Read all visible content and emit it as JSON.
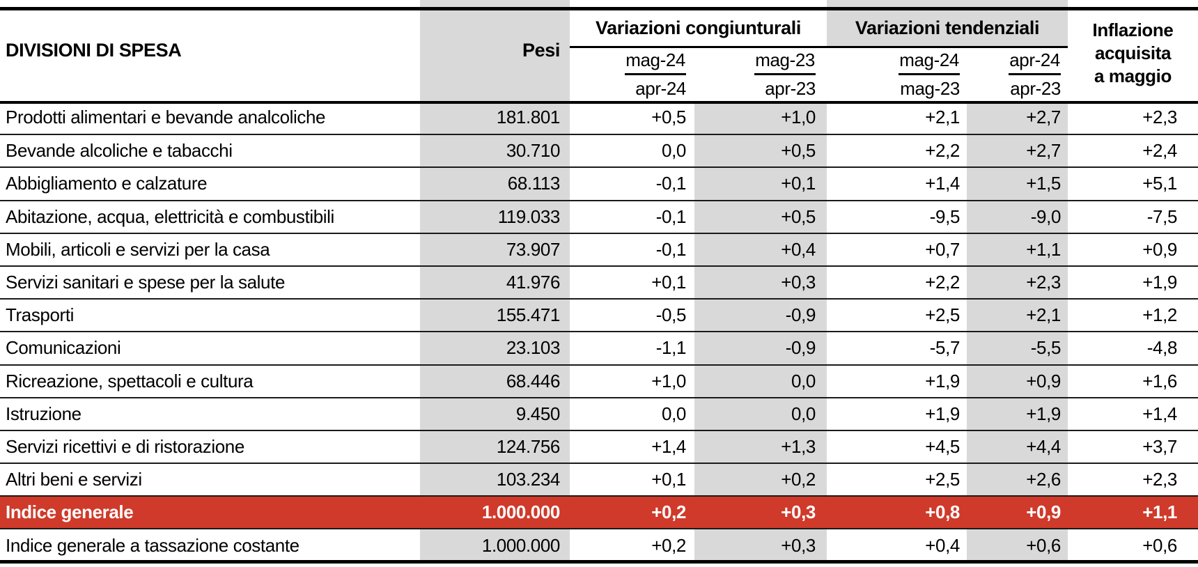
{
  "colors": {
    "highlight_red": "#cf3a2a",
    "shade_gray": "#d9d9d9"
  },
  "chart_data": {
    "type": "table",
    "header": {
      "col1": "DIVISIONI DI SPESA",
      "col2": "Pesi",
      "groups": [
        {
          "label": "Variazioni congiunturali",
          "sub": [
            {
              "num": "mag-24",
              "den": "apr-24"
            },
            {
              "num": "mag-23",
              "den": "apr-23"
            }
          ]
        },
        {
          "label": "Variazioni tendenziali",
          "sub": [
            {
              "num": "mag-24",
              "den": "mag-23"
            },
            {
              "num": "apr-24",
              "den": "apr-23"
            }
          ]
        }
      ],
      "last_col_lines": [
        "Inflazione",
        "acquisita",
        "a maggio"
      ]
    },
    "rows": [
      {
        "label": "Prodotti alimentari e bevande analcoliche",
        "pesi": "181.801",
        "values": [
          "+0,5",
          "+1,0",
          "+2,1",
          "+2,7",
          "+2,3"
        ],
        "highlight": false
      },
      {
        "label": "Bevande alcoliche e tabacchi",
        "pesi": "30.710",
        "values": [
          "0,0",
          "+0,5",
          "+2,2",
          "+2,7",
          "+2,4"
        ],
        "highlight": false
      },
      {
        "label": "Abbigliamento e calzature",
        "pesi": "68.113",
        "values": [
          "-0,1",
          "+0,1",
          "+1,4",
          "+1,5",
          "+5,1"
        ],
        "highlight": false
      },
      {
        "label": "Abitazione, acqua, elettricità e combustibili",
        "pesi": "119.033",
        "values": [
          "-0,1",
          "+0,5",
          "-9,5",
          "-9,0",
          "-7,5"
        ],
        "highlight": false
      },
      {
        "label": "Mobili, articoli e servizi per la casa",
        "pesi": "73.907",
        "values": [
          "-0,1",
          "+0,4",
          "+0,7",
          "+1,1",
          "+0,9"
        ],
        "highlight": false
      },
      {
        "label": "Servizi sanitari e spese per la salute",
        "pesi": "41.976",
        "values": [
          "+0,1",
          "+0,3",
          "+2,2",
          "+2,3",
          "+1,9"
        ],
        "highlight": false
      },
      {
        "label": "Trasporti",
        "pesi": "155.471",
        "values": [
          "-0,5",
          "-0,9",
          "+2,5",
          "+2,1",
          "+1,2"
        ],
        "highlight": false
      },
      {
        "label": "Comunicazioni",
        "pesi": "23.103",
        "values": [
          "-1,1",
          "-0,9",
          "-5,7",
          "-5,5",
          "-4,8"
        ],
        "highlight": false
      },
      {
        "label": "Ricreazione, spettacoli e cultura",
        "pesi": "68.446",
        "values": [
          "+1,0",
          "0,0",
          "+1,9",
          "+0,9",
          "+1,6"
        ],
        "highlight": false
      },
      {
        "label": "Istruzione",
        "pesi": "9.450",
        "values": [
          "0,0",
          "0,0",
          "+1,9",
          "+1,9",
          "+1,4"
        ],
        "highlight": false
      },
      {
        "label": "Servizi ricettivi e di ristorazione",
        "pesi": "124.756",
        "values": [
          "+1,4",
          "+1,3",
          "+4,5",
          "+4,4",
          "+3,7"
        ],
        "highlight": false
      },
      {
        "label": "Altri beni e servizi",
        "pesi": "103.234",
        "values": [
          "+0,1",
          "+0,2",
          "+2,5",
          "+2,6",
          "+2,3"
        ],
        "highlight": false
      },
      {
        "label": "Indice generale",
        "pesi": "1.000.000",
        "values": [
          "+0,2",
          "+0,3",
          "+0,8",
          "+0,9",
          "+1,1"
        ],
        "highlight": true
      },
      {
        "label": "Indice generale a tassazione costante",
        "pesi": "1.000.000",
        "values": [
          "+0,2",
          "+0,3",
          "+0,4",
          "+0,6",
          "+0,6"
        ],
        "highlight": false
      }
    ]
  }
}
